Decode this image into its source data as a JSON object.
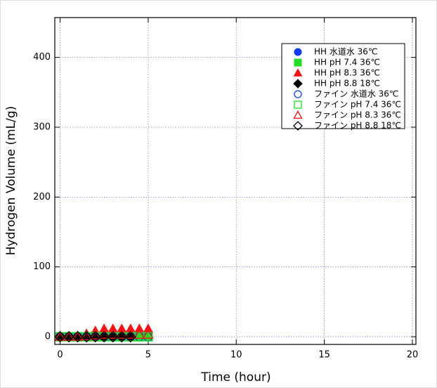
{
  "chart_data": {
    "type": "scatter",
    "xlabel": "Time (hour)",
    "ylabel": "Hydrogen Volume (mL/g)",
    "xlim": [
      -0.3,
      20.2
    ],
    "ylim": [
      -11,
      457
    ],
    "xticks": [
      0,
      5,
      10,
      15,
      20
    ],
    "yticks": [
      0,
      100,
      200,
      300,
      400
    ],
    "grid": true,
    "legend": "upper right",
    "series": [
      {
        "name": "HH 水道水 36℃",
        "color": "#0a3cff",
        "marker": "circle",
        "filled": true,
        "x": [
          0,
          0.5,
          1,
          1.5,
          2,
          2.5,
          3,
          3.5,
          4,
          4.5,
          5
        ],
        "values": [
          0,
          0,
          0,
          0,
          0,
          0,
          0,
          0,
          0,
          0,
          0
        ]
      },
      {
        "name": "HH pH 7.4 36℃",
        "color": "#22dd22",
        "marker": "square",
        "filled": true,
        "x": [
          0,
          0.5,
          1,
          1.5,
          2,
          2.5,
          3,
          3.5,
          4,
          4.5,
          5
        ],
        "values": [
          0,
          0,
          0,
          0,
          1,
          1,
          1,
          1,
          1,
          1,
          1
        ]
      },
      {
        "name": "HH pH 8.3 36℃",
        "color": "#ff1010",
        "marker": "triangle",
        "filled": true,
        "x": [
          0,
          0.5,
          1,
          1.5,
          2,
          2.5,
          3,
          3.5,
          4,
          4.5,
          5
        ],
        "values": [
          0,
          0,
          1,
          4,
          8,
          11,
          11,
          11,
          11,
          11,
          11
        ]
      },
      {
        "name": "HH pH 8.8 18℃",
        "color": "#000000",
        "marker": "diamond",
        "filled": true,
        "x": [
          0,
          0.5,
          1,
          1.5,
          2,
          2.5,
          3,
          3.5,
          4
        ],
        "values": [
          0,
          0,
          0,
          0,
          0,
          0,
          0,
          0,
          0
        ]
      },
      {
        "name": "ファイン 水道水 36℃",
        "color": "#0a3cff",
        "marker": "circle",
        "filled": false,
        "x": [
          0,
          0.5,
          1,
          1.5,
          2,
          2.5,
          3,
          3.5,
          4,
          4.5,
          5
        ],
        "values": [
          0,
          0,
          0,
          0,
          0,
          0,
          0,
          0,
          0,
          0,
          0
        ]
      },
      {
        "name": "ファイン pH 7.4 36℃",
        "color": "#22dd22",
        "marker": "square",
        "filled": false,
        "x": [
          0,
          0.5,
          1,
          1.5,
          2,
          2.5,
          3,
          3.5,
          4,
          4.5,
          5
        ],
        "values": [
          0,
          0,
          0,
          0,
          0,
          0,
          0,
          0,
          0,
          0,
          0
        ]
      },
      {
        "name": "ファイン pH 8.3 36℃",
        "color": "#ff1010",
        "marker": "triangle",
        "filled": false,
        "x": [
          0,
          0.5,
          1,
          1.5,
          2,
          2.5,
          3,
          3.5,
          4,
          4.5,
          5
        ],
        "values": [
          0,
          0,
          0,
          1,
          2,
          3,
          3,
          3,
          3,
          3,
          3
        ]
      },
      {
        "name": "ファイン pH 8.8 18℃",
        "color": "#000000",
        "marker": "diamond",
        "filled": false,
        "x": [
          0,
          0.5,
          1,
          1.5,
          2,
          2.5,
          3,
          3.5,
          4
        ],
        "values": [
          0,
          0,
          0,
          0,
          0,
          0,
          0,
          0,
          0
        ]
      }
    ]
  }
}
